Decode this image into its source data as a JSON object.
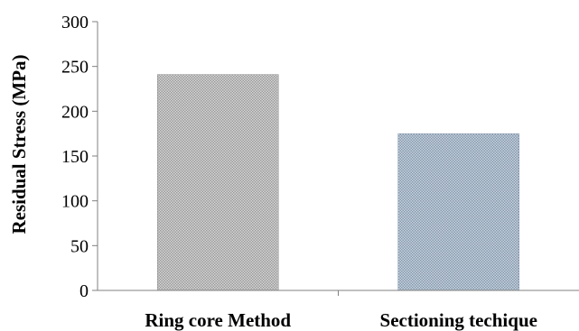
{
  "chart_data": {
    "type": "bar",
    "title": "",
    "xlabel": "",
    "ylabel": "Residual Stress (MPa)",
    "categories": [
      "Ring core Method",
      "Sectioning techique"
    ],
    "values": [
      241,
      175
    ],
    "ylim": [
      0,
      300
    ],
    "yticks": [
      "0",
      "50",
      "100",
      "150",
      "200",
      "250",
      "300"
    ],
    "grid": false,
    "legend": "none",
    "bar_colors": [
      "#b9b9b9",
      "#a9b8c8"
    ],
    "pattern_colors": [
      "#8f8f8f",
      "#7f93a8"
    ]
  }
}
